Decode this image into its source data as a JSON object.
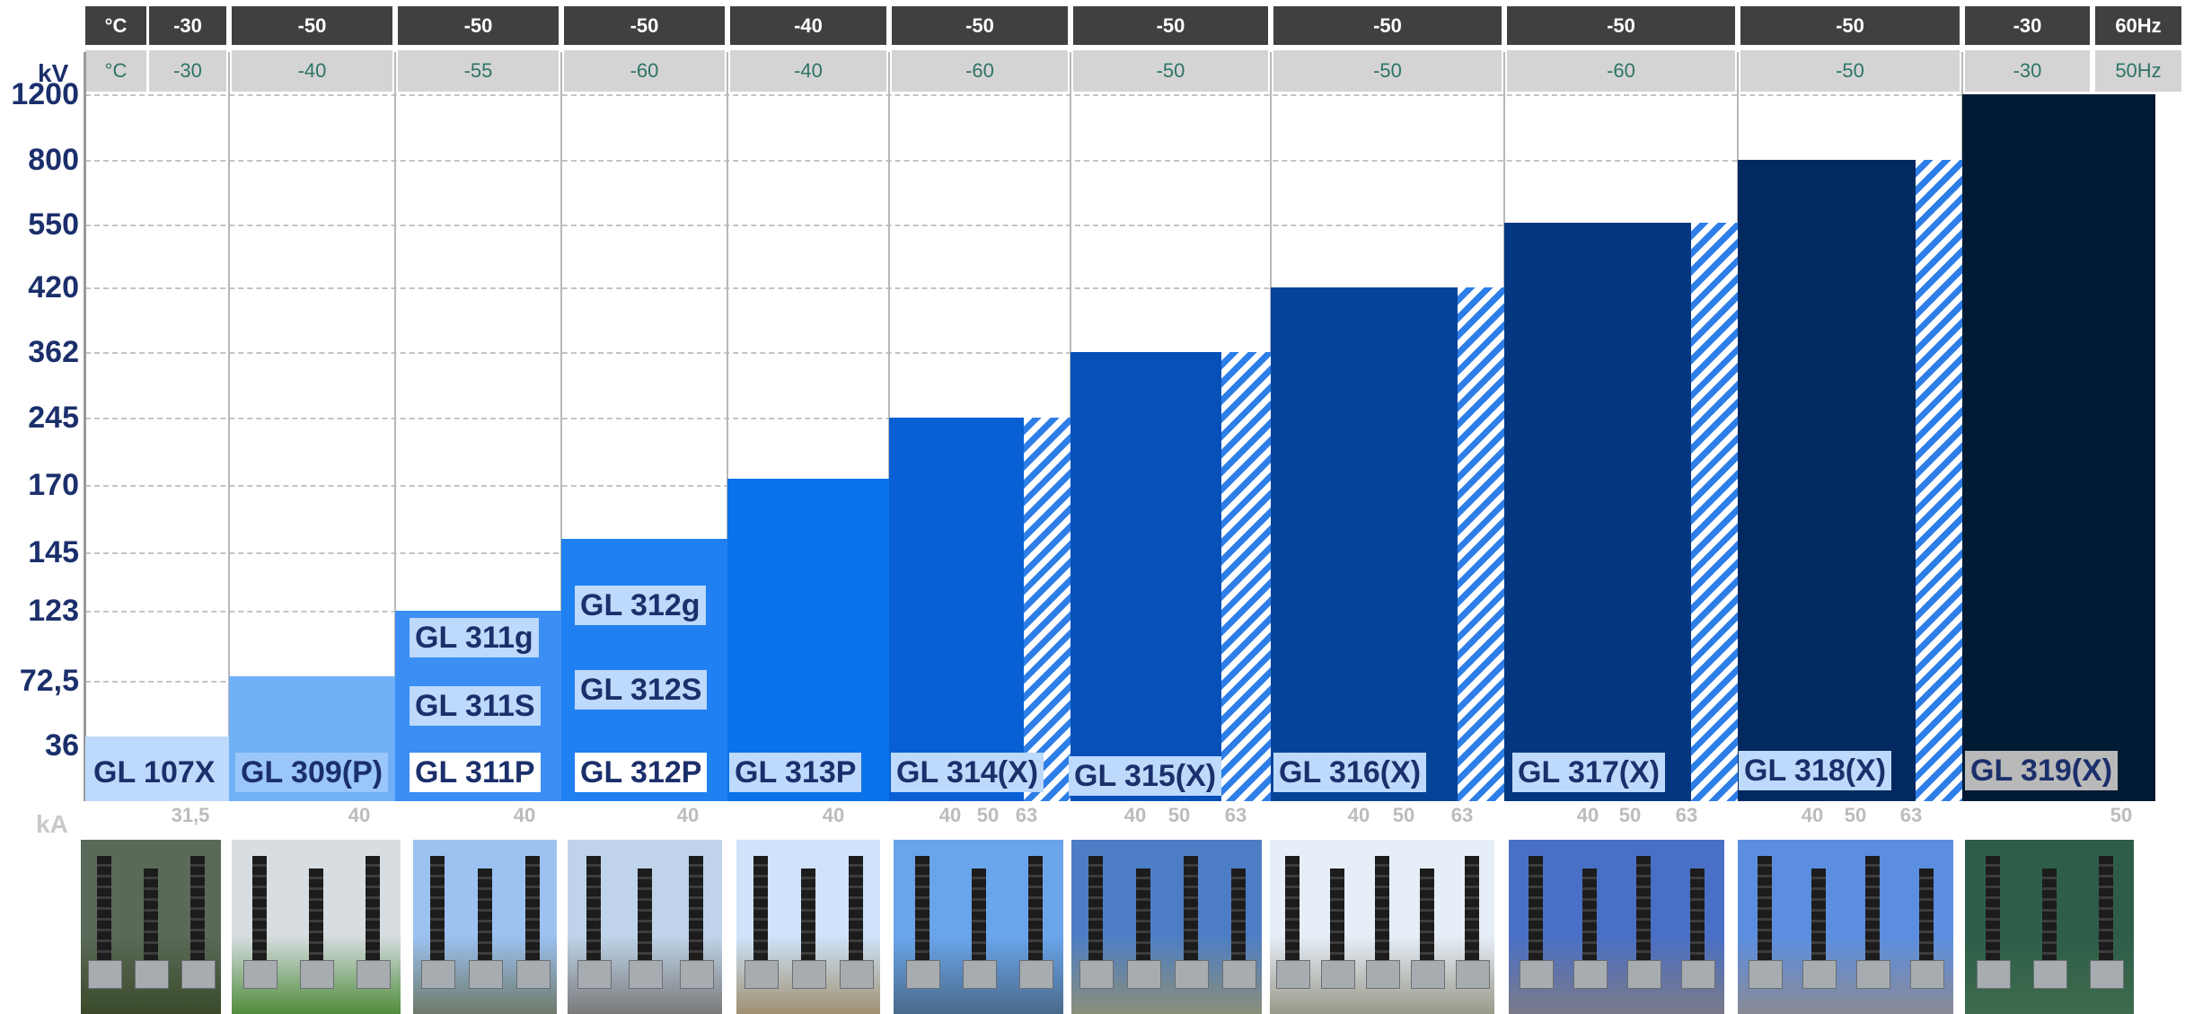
{
  "units": {
    "temp_header": "°C",
    "voltage": "kV",
    "current": "kA"
  },
  "rows": {
    "temp_60hz": [
      "-30",
      "-50",
      "-50",
      "-50",
      "-40",
      "-50",
      "-50",
      "-50",
      "-50",
      "-50",
      "-30"
    ],
    "temp_50hz": [
      "-30",
      "-40",
      "-55",
      "-60",
      "-40",
      "-60",
      "-50",
      "-50",
      "-60",
      "-50",
      "-30"
    ],
    "freq_60": "60Hz",
    "freq_50": "50Hz"
  },
  "chart_data": {
    "type": "bar",
    "ylabel": "kV",
    "y_tick_labels": [
      "1200",
      "800",
      "550",
      "420",
      "362",
      "245",
      "170",
      "145",
      "123",
      "72,5",
      "36"
    ],
    "categories": [
      "GL 107X",
      "GL 309(P)",
      "GL 311",
      "GL 312",
      "GL 313P",
      "GL 314(X)",
      "GL 315(X)",
      "GL 316(X)",
      "GL 317(X)",
      "GL 318(X)",
      "GL 319(X)"
    ],
    "values_kv": [
      "36",
      "72,5",
      "123",
      "145",
      "170",
      "245",
      "362",
      "420",
      "550",
      "800",
      "1200"
    ],
    "series": [
      {
        "labels": [
          "GL 107X"
        ]
      },
      {
        "labels": [
          "GL 309(P)"
        ]
      },
      {
        "labels": [
          "GL 311g",
          "GL 311S",
          "GL 311P"
        ]
      },
      {
        "labels": [
          "GL 312g",
          "GL 312S",
          "GL 312P"
        ]
      },
      {
        "labels": [
          "GL 313P"
        ]
      },
      {
        "labels": [
          "GL 314(X)"
        ]
      },
      {
        "labels": [
          "GL 315(X)"
        ]
      },
      {
        "labels": [
          "GL 316(X)"
        ]
      },
      {
        "labels": [
          "GL 317(X)"
        ]
      },
      {
        "labels": [
          "GL 318(X)"
        ]
      },
      {
        "labels": [
          "GL 319(X)"
        ]
      }
    ],
    "breaking_current_ka": [
      [
        "31,5"
      ],
      [
        "40"
      ],
      [
        "40"
      ],
      [
        "40"
      ],
      [
        "40"
      ],
      [
        "40",
        "50",
        "63"
      ],
      [
        "40",
        "50",
        "63"
      ],
      [
        "40",
        "50",
        "63"
      ],
      [
        "40",
        "50",
        "63"
      ],
      [
        "40",
        "50",
        "63"
      ],
      [
        "50"
      ]
    ],
    "hatched_extension": [
      false,
      false,
      false,
      false,
      false,
      true,
      true,
      true,
      true,
      true,
      false
    ],
    "colors": [
      "#bdd9fb",
      "#70b0f6",
      "#3b8ef3",
      "#1f80f2",
      "#0a72ea",
      "#0860d4",
      "#0650b8",
      "#044498",
      "#033880",
      "#022a60",
      "#021b35"
    ],
    "photos": [
      "substation-photo",
      "substation-photo",
      "substation-photo",
      "substation-photo",
      "substation-photo",
      "substation-photo",
      "substation-photo",
      "substation-photo",
      "substation-photo",
      "substation-photo",
      "substation-photo"
    ]
  }
}
